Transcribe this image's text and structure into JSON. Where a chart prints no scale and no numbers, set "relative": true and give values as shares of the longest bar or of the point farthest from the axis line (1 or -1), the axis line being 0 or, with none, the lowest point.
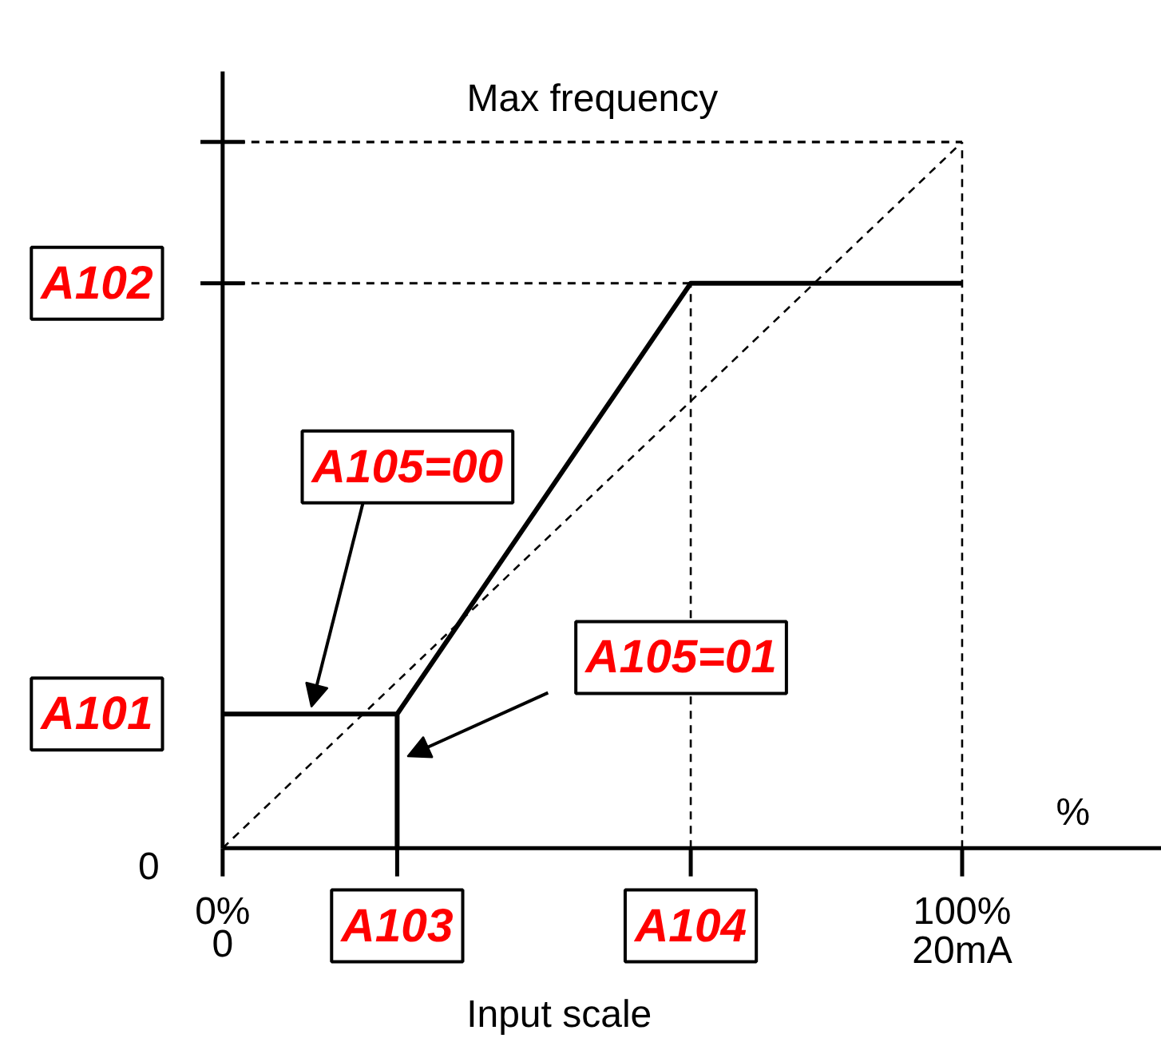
{
  "chart_data": {
    "type": "line",
    "xlabel": "Input scale",
    "relative": true,
    "xlim": [
      0,
      127
    ],
    "xticks": [
      {
        "value": 0,
        "label": "0%"
      },
      {
        "value": 23.6,
        "label": "A103"
      },
      {
        "value": 63.3,
        "label": "A104"
      },
      {
        "value": 100,
        "label": "100%"
      }
    ],
    "x2lim": [
      0,
      25.4
    ],
    "x2ticks": [
      0,
      {
        "value": 20,
        "label": "20mA"
      }
    ],
    "series": [
      {
        "color": "#000000",
        "line_style": "solid",
        "x": [
          0,
          23.6,
          23.6,
          23.6,
          63.3,
          100
        ],
        "values": [
          0.19,
          0.19,
          0,
          0.19,
          0.8,
          0.8
        ]
      },
      {
        "color": "#000000",
        "line_style": "dashed",
        "x": [
          0,
          100
        ],
        "values": [
          0,
          1
        ]
      }
    ],
    "ref_lines": [
      {
        "axis": "y",
        "value": 1,
        "label": "Max frequency",
        "color": "#000000",
        "line_style": "dashed"
      },
      {
        "axis": "x",
        "value": 100,
        "color": "#000000",
        "line_style": "dashed"
      },
      {
        "axis": "y",
        "value": 0.8,
        "label": "A102",
        "color": "#000000",
        "line_style": "dashed"
      },
      {
        "axis": "x",
        "value": 63.3,
        "color": "#000000",
        "line_style": "dashed"
      }
    ],
    "annotations": [
      "0",
      "%",
      {
        "text": "A101",
        "x": 0,
        "y": 0.19
      },
      "A105=00",
      "A105=01"
    ]
  }
}
